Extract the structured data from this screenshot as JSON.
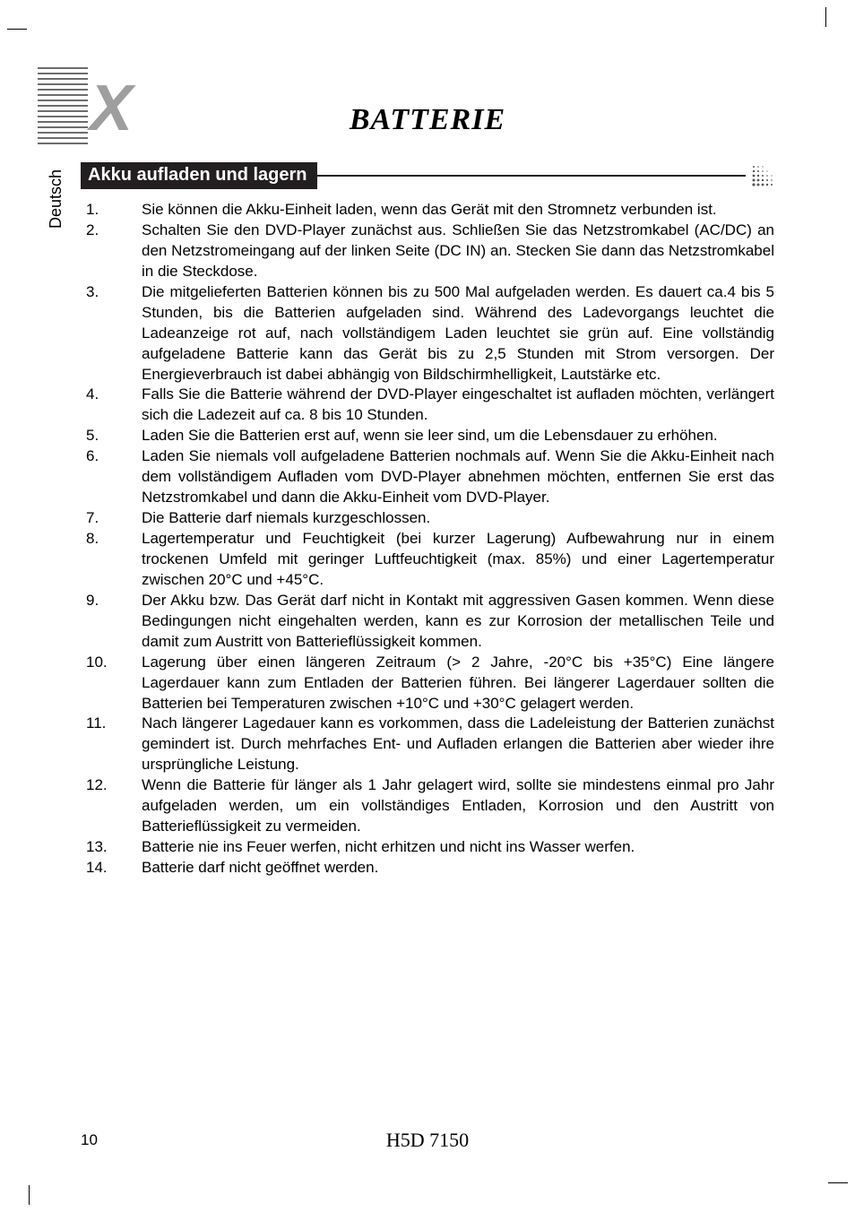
{
  "meta": {
    "language_tab": "Deutsch",
    "page_number": "10",
    "model_label": "H5D 7150"
  },
  "title": "BATTERIE",
  "section_heading": "Akku aufladen und lagern",
  "colors": {
    "text": "#000000",
    "section_bar_bg": "#231f20",
    "section_bar_text": "#ffffff",
    "logo_gray": "#9e9e9e",
    "background": "#ffffff"
  },
  "typography": {
    "title_fontsize_pt": 26,
    "title_style": "bold italic serif",
    "body_fontsize_pt": 13,
    "body_family": "Arial",
    "heading_fontsize_pt": 15,
    "heading_weight": "bold"
  },
  "list": [
    {
      "n": "1.",
      "t": "Sie können die Akku-Einheit laden, wenn das Gerät mit den Stromnetz verbunden ist."
    },
    {
      "n": "2.",
      "t": "Schalten Sie den DVD-Player zunächst aus. Schließen Sie das Netzstromkabel (AC/DC) an den Netzstromeingang auf der linken Seite (DC IN) an. Stecken Sie dann das Netzstromkabel in die Steckdose."
    },
    {
      "n": "3.",
      "t": "Die mitgelieferten Batterien können bis zu 500 Mal aufgeladen werden. Es dauert ca.4 bis 5 Stunden, bis die Batterien aufgeladen sind. Während des Ladevorgangs leuchtet die Ladeanzeige rot auf, nach vollständigem Laden leuchtet sie grün auf. Eine vollständig aufgeladene Batterie kann das Gerät bis zu 2,5 Stunden mit Strom versorgen. Der Energieverbrauch ist dabei abhängig von Bildschirmhelligkeit, Lautstärke etc."
    },
    {
      "n": "4.",
      "t": "Falls Sie die Batterie während der DVD-Player eingeschaltet ist aufladen möchten, verlängert sich die Ladezeit auf ca. 8 bis 10 Stunden."
    },
    {
      "n": "5.",
      "t": "Laden Sie die Batterien erst auf, wenn sie leer sind, um die Lebensdauer zu erhöhen."
    },
    {
      "n": "6.",
      "t": "Laden Sie niemals voll aufgeladene Batterien nochmals auf. Wenn Sie die Akku-Einheit nach dem vollständigem Aufladen vom DVD-Player abnehmen möchten, entfernen Sie erst das Netzstromkabel und dann die Akku-Einheit vom DVD-Player."
    },
    {
      "n": "7.",
      "t": "Die Batterie darf niemals kurzgeschlossen."
    },
    {
      "n": "8.",
      "t": "Lagertemperatur und Feuchtigkeit (bei kurzer Lagerung) Aufbewahrung nur in einem trockenen Umfeld mit geringer Luftfeuchtigkeit (max. 85%) und einer Lagertemperatur zwischen 20°C und +45°C."
    },
    {
      "n": "9.",
      "t": "Der Akku bzw. Das Gerät darf nicht in Kontakt mit aggressiven Gasen kommen. Wenn diese Bedingungen nicht eingehalten werden, kann es zur Korrosion der metallischen Teile und damit zum Austritt von Batterieflüssigkeit kommen."
    },
    {
      "n": "10.",
      "t": "Lagerung über einen längeren Zeitraum (> 2 Jahre, -20°C bis +35°C) Eine längere Lagerdauer kann zum Entladen der Batterien führen. Bei längerer Lagerdauer sollten die Batterien bei Temperaturen zwischen +10°C und +30°C gelagert werden."
    },
    {
      "n": "11.",
      "t": "Nach längerer Lagedauer kann es vorkommen, dass die Ladeleistung der Batterien zunächst gemindert ist. Durch mehrfaches Ent- und Aufladen erlangen die Batterien aber wieder ihre ursprüngliche Leistung."
    },
    {
      "n": "12.",
      "t": "Wenn die Batterie für länger als 1 Jahr gelagert wird, sollte sie mindestens einmal pro Jahr aufgeladen werden, um ein vollständiges Entladen, Korrosion und den Austritt von Batterieflüssigkeit zu vermeiden."
    },
    {
      "n": "13.",
      "t": "Batterie nie ins Feuer werfen, nicht erhitzen und nicht ins Wasser werfen."
    },
    {
      "n": "14.",
      "t": "Batterie darf nicht geöffnet werden."
    }
  ]
}
